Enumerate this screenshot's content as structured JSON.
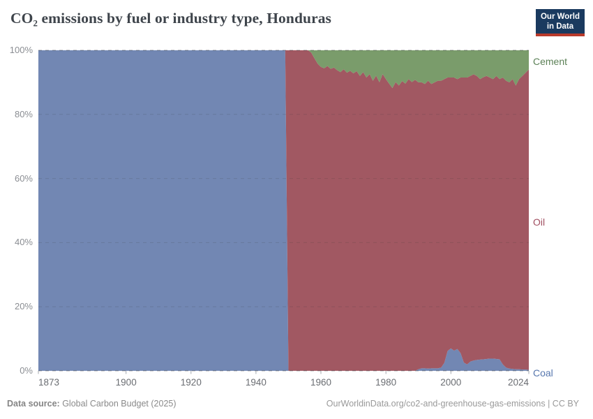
{
  "header": {
    "logo_line1": "Our World",
    "logo_line2": "in Data"
  },
  "footer": {
    "source_label": "Data source:",
    "source_value": " Global Carbon Budget (2025)",
    "credit": "OurWorldinData.org/co2-and-greenhouse-gas-emissions | CC BY"
  },
  "chart_data": {
    "type": "area",
    "stacking": "percent",
    "title": "CO₂ emissions by fuel or industry type, Honduras",
    "entity": "Honduras",
    "xlabel": "",
    "ylabel": "",
    "x_range": [
      1873,
      2024
    ],
    "y_range": [
      0,
      100
    ],
    "x_ticks": [
      1873,
      1900,
      1920,
      1940,
      1960,
      1980,
      2000,
      2024
    ],
    "y_ticks": [
      0,
      20,
      40,
      60,
      80,
      100
    ],
    "y_tick_suffix": "%",
    "grid": "dashed-horizontal",
    "legend_position": "right-edge-labels",
    "series": [
      {
        "name": "Coal",
        "color": "#7287b3",
        "label_color": "#5777ae"
      },
      {
        "name": "Oil",
        "color": "#a15862",
        "label_color": "#a04e60"
      },
      {
        "name": "Cement",
        "color": "#7a9c6b",
        "label_color": "#5c8157"
      }
    ],
    "points_format": [
      "year",
      "coal_pct",
      "oil_pct",
      "cement_pct"
    ],
    "interpolation": "linear between listed years",
    "points": [
      [
        1873,
        100,
        0,
        0
      ],
      [
        1949,
        100,
        0,
        0
      ],
      [
        1950,
        0,
        100,
        0
      ],
      [
        1956,
        0,
        100,
        0
      ],
      [
        1957,
        0,
        99.3,
        0.7
      ],
      [
        1958,
        0,
        97.5,
        2.5
      ],
      [
        1959,
        0,
        95.8,
        4.2
      ],
      [
        1960,
        0,
        94.8,
        5.2
      ],
      [
        1961,
        0,
        94.4,
        5.6
      ],
      [
        1962,
        0,
        95.1,
        4.9
      ],
      [
        1963,
        0,
        94.2,
        5.8
      ],
      [
        1964,
        0,
        94.6,
        5.4
      ],
      [
        1965,
        0,
        93.8,
        6.2
      ],
      [
        1966,
        0,
        93.2,
        6.8
      ],
      [
        1967,
        0,
        94.1,
        5.9
      ],
      [
        1968,
        0,
        93.0,
        7.0
      ],
      [
        1969,
        0,
        93.6,
        6.4
      ],
      [
        1970,
        0,
        92.8,
        7.2
      ],
      [
        1971,
        0,
        93.5,
        6.5
      ],
      [
        1972,
        0,
        92.0,
        8.0
      ],
      [
        1973,
        0,
        93.2,
        6.8
      ],
      [
        1974,
        0,
        91.5,
        8.5
      ],
      [
        1975,
        0,
        92.6,
        7.4
      ],
      [
        1976,
        0,
        90.5,
        9.5
      ],
      [
        1977,
        0,
        92.1,
        7.9
      ],
      [
        1978,
        0,
        90.0,
        10.0
      ],
      [
        1979,
        0,
        92.6,
        7.4
      ],
      [
        1980,
        0,
        91.0,
        9.0
      ],
      [
        1981,
        0,
        89.6,
        10.4
      ],
      [
        1982,
        0,
        88.2,
        11.8
      ],
      [
        1983,
        0,
        90.1,
        9.9
      ],
      [
        1984,
        0,
        89.0,
        11.0
      ],
      [
        1985,
        0,
        90.4,
        9.6
      ],
      [
        1986,
        0,
        89.6,
        10.4
      ],
      [
        1987,
        0,
        91.0,
        9.0
      ],
      [
        1988,
        0,
        90.1,
        9.9
      ],
      [
        1989,
        0,
        90.8,
        9.2
      ],
      [
        1990,
        0.5,
        89.5,
        10.0
      ],
      [
        1991,
        0.8,
        89.2,
        10.0
      ],
      [
        1992,
        0.8,
        88.7,
        10.5
      ],
      [
        1993,
        0.7,
        89.8,
        9.5
      ],
      [
        1994,
        0.8,
        88.7,
        10.5
      ],
      [
        1995,
        0.8,
        89.2,
        10.0
      ],
      [
        1996,
        0.8,
        89.7,
        9.5
      ],
      [
        1997,
        1.0,
        89.5,
        9.5
      ],
      [
        1998,
        2.5,
        88.5,
        9.0
      ],
      [
        1999,
        6.2,
        85.3,
        8.5
      ],
      [
        2000,
        7.0,
        84.5,
        8.5
      ],
      [
        2001,
        6.3,
        85.2,
        8.5
      ],
      [
        2002,
        6.8,
        84.2,
        9.0
      ],
      [
        2003,
        5.5,
        86.0,
        8.5
      ],
      [
        2004,
        2.6,
        88.9,
        8.5
      ],
      [
        2005,
        2.0,
        89.5,
        8.5
      ],
      [
        2006,
        2.9,
        89.1,
        8.0
      ],
      [
        2007,
        3.2,
        89.3,
        7.5
      ],
      [
        2008,
        3.4,
        88.6,
        8.0
      ],
      [
        2009,
        3.5,
        87.5,
        9.0
      ],
      [
        2010,
        3.6,
        88.0,
        8.4
      ],
      [
        2011,
        3.7,
        88.3,
        8.0
      ],
      [
        2012,
        3.8,
        87.7,
        8.5
      ],
      [
        2013,
        3.8,
        87.2,
        9.0
      ],
      [
        2014,
        3.7,
        88.3,
        8.0
      ],
      [
        2015,
        3.6,
        87.4,
        9.0
      ],
      [
        2016,
        2.0,
        89.5,
        8.5
      ],
      [
        2017,
        1.0,
        89.5,
        9.5
      ],
      [
        2018,
        0.7,
        89.3,
        10.0
      ],
      [
        2019,
        0.6,
        90.4,
        9.0
      ],
      [
        2020,
        0.5,
        88.5,
        11.0
      ],
      [
        2021,
        0.5,
        90.5,
        9.0
      ],
      [
        2022,
        0.4,
        91.6,
        8.0
      ],
      [
        2023,
        0.4,
        92.6,
        7.0
      ],
      [
        2024,
        0.3,
        93.7,
        6.0
      ]
    ]
  }
}
